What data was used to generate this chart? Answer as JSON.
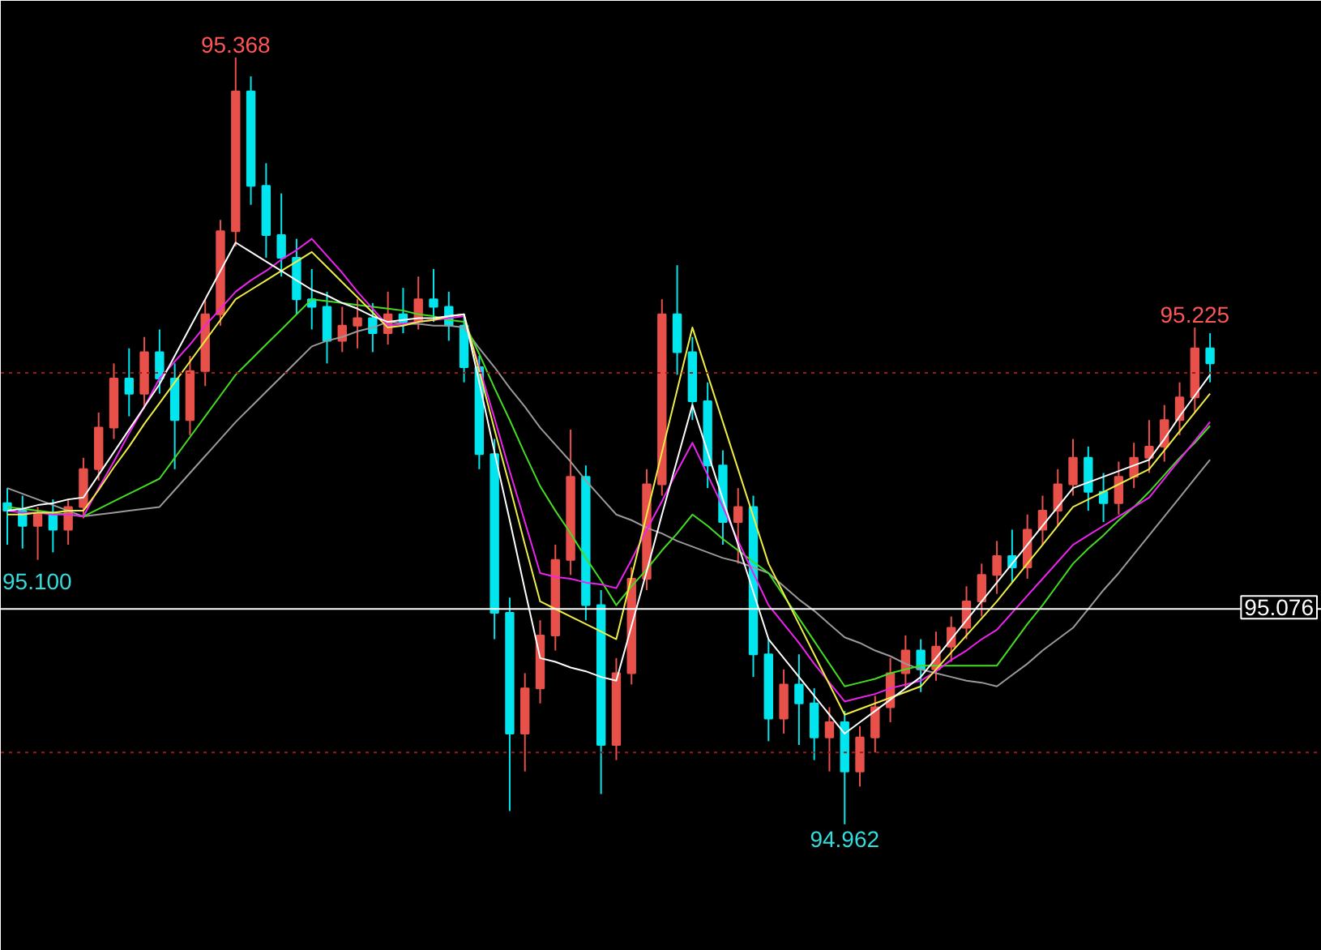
{
  "chart_data": {
    "type": "candlestick",
    "categories": [
      null,
      null,
      null,
      null,
      null,
      null,
      null,
      null,
      null,
      null,
      null,
      null,
      null,
      null,
      null,
      null,
      null,
      null,
      null,
      null,
      null,
      null,
      null,
      null,
      null,
      null,
      null,
      null,
      null,
      null,
      null,
      null,
      null,
      null,
      null,
      null,
      null,
      null,
      null,
      null,
      null,
      null,
      null,
      null,
      null,
      null,
      null,
      null,
      null,
      null,
      null,
      null,
      null,
      null,
      null,
      null,
      null,
      null,
      null,
      null,
      null,
      null,
      null,
      null,
      null,
      null,
      null,
      null,
      null,
      null,
      null,
      null,
      null,
      null,
      null,
      null,
      null,
      null,
      null,
      null
    ],
    "ylim": [
      94.895,
      95.398
    ],
    "tick_labels": false,
    "ohlc": [
      [
        95.132,
        95.14,
        95.11,
        95.128
      ],
      [
        95.128,
        95.136,
        95.108,
        95.12
      ],
      [
        95.12,
        95.13,
        95.102,
        95.126
      ],
      [
        95.126,
        95.134,
        95.106,
        95.118
      ],
      [
        95.118,
        95.134,
        95.11,
        95.13
      ],
      [
        95.13,
        95.156,
        95.124,
        95.15
      ],
      [
        95.15,
        95.18,
        95.144,
        95.172
      ],
      [
        95.172,
        95.206,
        95.166,
        95.198
      ],
      [
        95.198,
        95.214,
        95.178,
        95.19
      ],
      [
        95.19,
        95.22,
        95.182,
        95.212
      ],
      [
        95.212,
        95.224,
        95.19,
        95.198
      ],
      [
        95.198,
        95.206,
        95.15,
        95.176
      ],
      [
        95.176,
        95.21,
        95.168,
        95.202
      ],
      [
        95.202,
        95.24,
        95.194,
        95.232
      ],
      [
        95.232,
        95.282,
        95.226,
        95.276
      ],
      [
        95.276,
        95.368,
        95.268,
        95.35
      ],
      [
        95.35,
        95.358,
        95.29,
        95.3
      ],
      [
        95.3,
        95.312,
        95.262,
        95.274
      ],
      [
        95.274,
        95.296,
        95.252,
        95.262
      ],
      [
        95.262,
        95.272,
        95.232,
        95.24
      ],
      [
        95.24,
        95.256,
        95.224,
        95.236
      ],
      [
        95.236,
        95.244,
        95.206,
        95.218
      ],
      [
        95.218,
        95.236,
        95.212,
        95.226
      ],
      [
        95.226,
        95.24,
        95.214,
        95.23
      ],
      [
        95.23,
        95.238,
        95.212,
        95.222
      ],
      [
        95.222,
        95.244,
        95.216,
        95.232
      ],
      [
        95.232,
        95.246,
        95.222,
        95.228
      ],
      [
        95.228,
        95.252,
        95.224,
        95.24
      ],
      [
        95.24,
        95.256,
        95.228,
        95.236
      ],
      [
        95.236,
        95.244,
        95.218,
        95.226
      ],
      [
        95.226,
        95.232,
        95.196,
        95.204
      ],
      [
        95.204,
        95.21,
        95.15,
        95.158
      ],
      [
        95.158,
        95.166,
        95.06,
        95.074
      ],
      [
        95.074,
        95.082,
        94.969,
        95.01
      ],
      [
        95.01,
        95.042,
        94.99,
        95.034
      ],
      [
        95.034,
        95.07,
        95.026,
        95.062
      ],
      [
        95.062,
        95.11,
        95.054,
        95.102
      ],
      [
        95.102,
        95.171,
        95.094,
        95.146
      ],
      [
        95.146,
        95.152,
        95.07,
        95.078
      ],
      [
        95.078,
        95.086,
        94.978,
        95.004
      ],
      [
        95.004,
        95.05,
        94.996,
        95.042
      ],
      [
        95.042,
        95.098,
        95.036,
        95.092
      ],
      [
        95.092,
        95.15,
        95.086,
        95.142
      ],
      [
        95.142,
        95.24,
        95.136,
        95.232
      ],
      [
        95.232,
        95.258,
        95.2,
        95.212
      ],
      [
        95.212,
        95.22,
        95.176,
        95.186
      ],
      [
        95.186,
        95.196,
        95.14,
        95.152
      ],
      [
        95.152,
        95.16,
        95.11,
        95.122
      ],
      [
        95.122,
        95.14,
        95.1,
        95.13
      ],
      [
        95.13,
        95.136,
        95.04,
        95.052
      ],
      [
        95.052,
        95.06,
        95.006,
        95.018
      ],
      [
        95.018,
        95.044,
        95.01,
        95.036
      ],
      [
        95.036,
        95.052,
        95.004,
        95.026
      ],
      [
        95.026,
        95.034,
        94.996,
        95.008
      ],
      [
        95.008,
        95.024,
        94.99,
        95.016
      ],
      [
        95.016,
        95.022,
        94.962,
        94.99
      ],
      [
        94.99,
        95.014,
        94.982,
        95.008
      ],
      [
        95.008,
        95.03,
        95.0,
        95.024
      ],
      [
        95.024,
        95.05,
        95.016,
        95.042
      ],
      [
        95.042,
        95.062,
        95.034,
        95.054
      ],
      [
        95.054,
        95.06,
        95.032,
        95.044
      ],
      [
        95.044,
        95.064,
        95.038,
        95.056
      ],
      [
        95.056,
        95.072,
        95.048,
        95.066
      ],
      [
        95.066,
        95.088,
        95.06,
        95.08
      ],
      [
        95.08,
        95.1,
        95.072,
        95.094
      ],
      [
        95.094,
        95.112,
        95.084,
        95.104
      ],
      [
        95.104,
        95.118,
        95.09,
        95.098
      ],
      [
        95.098,
        95.126,
        95.092,
        95.118
      ],
      [
        95.118,
        95.136,
        95.11,
        95.128
      ],
      [
        95.128,
        95.15,
        95.12,
        95.142
      ],
      [
        95.142,
        95.166,
        95.136,
        95.156
      ],
      [
        95.156,
        95.162,
        95.128,
        95.138
      ],
      [
        95.138,
        95.148,
        95.122,
        95.132
      ],
      [
        95.132,
        95.154,
        95.126,
        95.146
      ],
      [
        95.146,
        95.164,
        95.14,
        95.156
      ],
      [
        95.156,
        95.176,
        95.148,
        95.162
      ],
      [
        95.162,
        95.184,
        95.154,
        95.176
      ],
      [
        95.176,
        95.196,
        95.168,
        95.188
      ],
      [
        95.188,
        95.225,
        95.18,
        95.214
      ],
      [
        95.214,
        95.222,
        95.196,
        95.206
      ]
    ],
    "colors": [
      "#00e5ee",
      "#00e5ee",
      "#e8504a",
      "#00e5ee",
      "#e8504a",
      "#e8504a",
      "#e8504a",
      "#e8504a",
      "#00e5ee",
      "#e8504a",
      "#00e5ee",
      "#00e5ee",
      "#e8504a",
      "#e8504a",
      "#e8504a",
      "#e8504a",
      "#00e5ee",
      "#00e5ee",
      "#00e5ee",
      "#00e5ee",
      "#00e5ee",
      "#00e5ee",
      "#e8504a",
      "#e8504a",
      "#00e5ee",
      "#e8504a",
      "#00e5ee",
      "#e8504a",
      "#00e5ee",
      "#00e5ee",
      "#00e5ee",
      "#00e5ee",
      "#00e5ee",
      "#00e5ee",
      "#e8504a",
      "#e8504a",
      "#e8504a",
      "#e8504a",
      "#00e5ee",
      "#00e5ee",
      "#e8504a",
      "#e8504a",
      "#e8504a",
      "#e8504a",
      "#00e5ee",
      "#00e5ee",
      "#00e5ee",
      "#00e5ee",
      "#e8504a",
      "#00e5ee",
      "#00e5ee",
      "#e8504a",
      "#00e5ee",
      "#00e5ee",
      "#e8504a",
      "#00e5ee",
      "#e8504a",
      "#e8504a",
      "#e8504a",
      "#e8504a",
      "#00e5ee",
      "#e8504a",
      "#e8504a",
      "#e8504a",
      "#e8504a",
      "#e8504a",
      "#00e5ee",
      "#e8504a",
      "#e8504a",
      "#e8504a",
      "#e8504a",
      "#00e5ee",
      "#00e5ee",
      "#e8504a",
      "#e8504a",
      "#e8504a",
      "#e8504a",
      "#e8504a",
      "#e8504a",
      "#00e5ee"
    ],
    "series": [
      {
        "type": "line",
        "color": "#9a9a9a",
        "values": [
          95.14,
          95.137,
          95.134,
          95.131,
          95.128,
          95.125,
          95.126,
          95.127,
          95.128,
          95.129,
          95.13,
          95.139,
          95.148,
          95.157,
          95.166,
          95.175,
          95.183,
          95.191,
          95.199,
          95.207,
          95.215,
          95.218,
          95.22,
          95.223,
          95.225,
          95.228,
          95.227,
          95.227,
          95.226,
          95.226,
          95.225,
          95.214,
          95.204,
          95.193,
          95.183,
          95.172,
          95.163,
          95.154,
          95.144,
          95.135,
          95.126,
          95.123,
          95.119,
          95.116,
          95.112,
          95.109,
          95.106,
          95.103,
          95.101,
          95.098,
          95.095,
          95.088,
          95.081,
          95.075,
          95.068,
          95.061,
          95.058,
          95.054,
          95.051,
          95.047,
          95.044,
          95.042,
          95.04,
          95.038,
          95.037,
          95.035,
          95.041,
          95.047,
          95.054,
          95.06,
          95.066,
          95.076,
          95.086,
          95.095,
          95.105,
          95.115,
          95.125,
          95.135,
          95.145,
          95.155
        ]
      },
      {
        "type": "line",
        "color": "#44dd22",
        "values": [
          95.13,
          95.129,
          95.128,
          95.127,
          95.126,
          95.125,
          95.129,
          95.133,
          95.137,
          95.141,
          95.145,
          95.156,
          95.167,
          95.178,
          95.189,
          95.2,
          95.208,
          95.216,
          95.224,
          95.232,
          95.24,
          95.239,
          95.238,
          95.237,
          95.236,
          95.235,
          95.234,
          95.232,
          95.231,
          95.229,
          95.228,
          95.211,
          95.193,
          95.176,
          95.158,
          95.141,
          95.128,
          95.116,
          95.103,
          95.091,
          95.078,
          95.088,
          95.097,
          95.107,
          95.116,
          95.126,
          95.12,
          95.113,
          95.107,
          95.101,
          95.095,
          95.083,
          95.071,
          95.059,
          95.047,
          95.035,
          95.037,
          95.039,
          95.042,
          95.044,
          95.046,
          95.046,
          95.046,
          95.046,
          95.046,
          95.046,
          95.057,
          95.068,
          95.078,
          95.089,
          95.1,
          95.108,
          95.115,
          95.123,
          95.13,
          95.138,
          95.147,
          95.156,
          95.164,
          95.173
        ]
      },
      {
        "type": "line",
        "color": "#ee22ee",
        "values": [
          95.128,
          95.127,
          95.127,
          95.126,
          95.126,
          95.125,
          95.14,
          95.154,
          95.169,
          95.183,
          95.198,
          95.207,
          95.216,
          95.226,
          95.235,
          95.244,
          95.25,
          95.255,
          95.261,
          95.266,
          95.272,
          95.263,
          95.254,
          95.244,
          95.235,
          95.226,
          95.227,
          95.228,
          95.229,
          95.23,
          95.231,
          95.204,
          95.177,
          95.149,
          95.122,
          95.095,
          95.093,
          95.092,
          95.09,
          95.089,
          95.087,
          95.102,
          95.118,
          95.133,
          95.149,
          95.164,
          95.147,
          95.13,
          95.112,
          95.095,
          95.078,
          95.068,
          95.058,
          95.047,
          95.037,
          95.027,
          95.029,
          95.031,
          95.034,
          95.036,
          95.038,
          95.043,
          95.049,
          95.054,
          95.06,
          95.065,
          95.074,
          95.083,
          95.092,
          95.101,
          95.11,
          95.115,
          95.12,
          95.125,
          95.13,
          95.135,
          95.145,
          95.155,
          95.165,
          95.175
        ]
      },
      {
        "type": "line",
        "color": "#eeee44",
        "values": [
          95.126,
          95.126,
          95.127,
          95.127,
          95.128,
          95.128,
          95.139,
          95.151,
          95.162,
          95.174,
          95.185,
          95.196,
          95.207,
          95.218,
          95.229,
          95.24,
          95.245,
          95.25,
          95.255,
          95.26,
          95.265,
          95.257,
          95.249,
          95.241,
          95.233,
          95.225,
          95.226,
          95.228,
          95.229,
          95.231,
          95.232,
          95.202,
          95.171,
          95.141,
          95.11,
          95.08,
          95.076,
          95.072,
          95.068,
          95.064,
          95.06,
          95.093,
          95.126,
          95.159,
          95.192,
          95.225,
          95.2,
          95.175,
          95.15,
          95.125,
          95.1,
          95.084,
          95.068,
          95.052,
          95.036,
          95.02,
          95.023,
          95.026,
          95.029,
          95.032,
          95.035,
          95.044,
          95.053,
          95.062,
          95.071,
          95.08,
          95.09,
          95.1,
          95.11,
          95.12,
          95.13,
          95.134,
          95.138,
          95.142,
          95.146,
          95.15,
          95.16,
          95.17,
          95.18,
          95.19
        ]
      },
      {
        "type": "line",
        "color": "#ffffff",
        "values": [
          95.128,
          95.129,
          95.131,
          95.132,
          95.134,
          95.135,
          95.147,
          95.159,
          95.171,
          95.183,
          95.195,
          95.21,
          95.225,
          95.24,
          95.255,
          95.27,
          95.265,
          95.26,
          95.255,
          95.25,
          95.245,
          95.242,
          95.238,
          95.235,
          95.231,
          95.228,
          95.229,
          95.23,
          95.23,
          95.231,
          95.232,
          95.196,
          95.159,
          95.123,
          95.086,
          95.05,
          95.048,
          95.045,
          95.043,
          95.04,
          95.038,
          95.067,
          95.096,
          95.126,
          95.155,
          95.184,
          95.159,
          95.134,
          95.11,
          95.085,
          95.06,
          95.05,
          95.04,
          95.03,
          95.02,
          95.01,
          95.016,
          95.022,
          95.028,
          95.034,
          95.04,
          95.05,
          95.06,
          95.07,
          95.08,
          95.09,
          95.1,
          95.11,
          95.12,
          95.13,
          95.14,
          95.143,
          95.146,
          95.149,
          95.152,
          95.155,
          95.166,
          95.178,
          95.189,
          95.2
        ]
      }
    ],
    "ref_lines": [
      {
        "axis": "y",
        "value": 95.201,
        "color": "#a01818",
        "line_style": "dotted"
      },
      {
        "axis": "y",
        "value": 95.0,
        "color": "#a01818",
        "line_style": "dotted"
      },
      {
        "axis": "y",
        "value": 95.076,
        "label": "95.076",
        "color": "#ffffff",
        "line_style": "solid"
      }
    ],
    "annotations": [
      {
        "text": "95.368",
        "y": 95.368
      },
      {
        "text": "95.225",
        "y": 95.225
      },
      "95.100",
      {
        "text": "94.962",
        "y": 94.962
      }
    ]
  }
}
